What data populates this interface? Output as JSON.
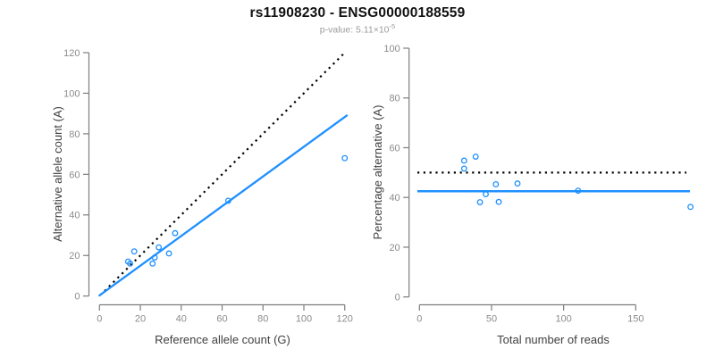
{
  "header": {
    "title": "rs11908230 - ENSG00000188559",
    "subtitle_prefix": "p-value: 5.11×10",
    "subtitle_exponent": "-5"
  },
  "colors": {
    "accent_blue": "#1E90FF",
    "identity_black": "#000000",
    "axis_gray": "#7d7d7d",
    "tick_label_gray": "#8c8c8c",
    "axis_title_gray": "#404040",
    "subtitle_gray": "#9b9b9b",
    "title_black": "#111111"
  },
  "chart_data": [
    {
      "type": "scatter",
      "panel": "left",
      "xlabel": "Reference allele count (G)",
      "ylabel": "Alternative allele count (A)",
      "xlim": [
        0,
        120
      ],
      "ylim": [
        0,
        120
      ],
      "xticks": [
        0,
        20,
        40,
        60,
        80,
        100,
        120
      ],
      "yticks": [
        0,
        20,
        40,
        60,
        80,
        100,
        120
      ],
      "grid": false,
      "legend": false,
      "points": [
        [
          14,
          17
        ],
        [
          15,
          16
        ],
        [
          17,
          22
        ],
        [
          26,
          16
        ],
        [
          27,
          19
        ],
        [
          29,
          24
        ],
        [
          34,
          21
        ],
        [
          37,
          31
        ],
        [
          63,
          47
        ],
        [
          120,
          68
        ]
      ],
      "identity_line": {
        "style": "dotted",
        "color_key": "identity_black",
        "from": [
          2.5,
          2.5
        ],
        "to": [
          120.5,
          120.5
        ],
        "meaning": "y = x (50% expectation)"
      },
      "fit_line": {
        "style": "solid",
        "color_key": "accent_blue",
        "from": [
          0,
          0.3
        ],
        "to": [
          121,
          89
        ],
        "slope": 0.73
      }
    },
    {
      "type": "scatter",
      "panel": "right",
      "xlabel": "Total number of reads",
      "ylabel": "Percentage alternative (A)",
      "xlim": [
        0,
        150
      ],
      "ylim": [
        0,
        100
      ],
      "xticks": [
        0,
        50,
        100,
        150
      ],
      "yticks": [
        0,
        20,
        40,
        60,
        80,
        100
      ],
      "grid": false,
      "legend": false,
      "points": [
        [
          31,
          54.8
        ],
        [
          31,
          51.6
        ],
        [
          39,
          56.4
        ],
        [
          42,
          38.1
        ],
        [
          46,
          41.3
        ],
        [
          53,
          45.3
        ],
        [
          55,
          38.2
        ],
        [
          68,
          45.6
        ],
        [
          110,
          42.7
        ],
        [
          188,
          36.2
        ]
      ],
      "hlines": [
        {
          "y": 50,
          "style": "dotted",
          "color_key": "identity_black",
          "meaning": "50% reference line"
        },
        {
          "y": 42.5,
          "style": "solid",
          "color_key": "accent_blue",
          "meaning": "overall alternative fraction"
        }
      ]
    }
  ]
}
